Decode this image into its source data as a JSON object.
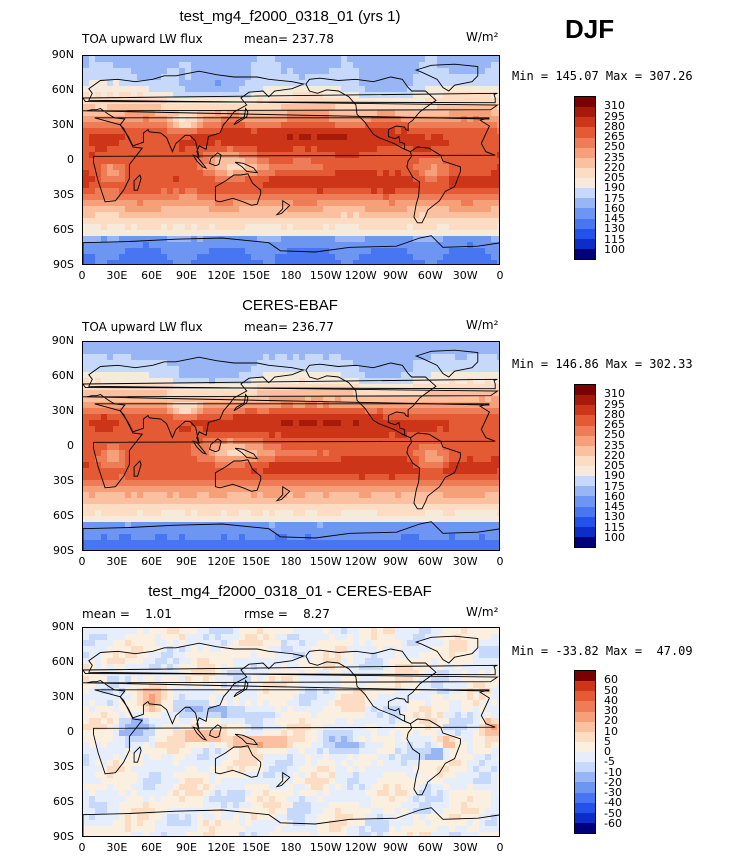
{
  "season": "DJF",
  "colors": {
    "abs": [
      "#00007a",
      "#0b2ec9",
      "#2251ec",
      "#4876f2",
      "#6d95f2",
      "#98b5f5",
      "#c6d9fb",
      "#f6eadb",
      "#fddcc4",
      "#fbc0a0",
      "#f6a079",
      "#ee7d57",
      "#e35a34",
      "#cc3518",
      "#a51a09",
      "#7d0000"
    ],
    "diff": [
      "#00007a",
      "#0b2ec9",
      "#2251ec",
      "#4876f2",
      "#6d95f2",
      "#98b5f5",
      "#c6d9fb",
      "#e7eefb",
      "#fbf0e0",
      "#fddcc4",
      "#fbc0a0",
      "#f6a079",
      "#ee7d57",
      "#e35a34",
      "#cc3518",
      "#7d0000"
    ]
  },
  "panels": [
    {
      "title": "test_mg4_f2000_0318_01 (yrs 1)",
      "hdr_left": "TOA upward LW flux",
      "hdr_mid": "mean= 237.78",
      "units": "W/m²",
      "minmax": "Min = 145.07 Max = 307.26",
      "colorbar_labels": [
        "310",
        "295",
        "280",
        "265",
        "250",
        "235",
        "220",
        "205",
        "190",
        "175",
        "160",
        "145",
        "130",
        "115",
        "100"
      ]
    },
    {
      "title": "CERES-EBAF",
      "hdr_left": "TOA upward LW flux",
      "hdr_mid": "mean= 236.77",
      "units": "W/m²",
      "minmax": "Min = 146.86 Max = 302.33",
      "colorbar_labels": [
        "310",
        "295",
        "280",
        "265",
        "250",
        "235",
        "220",
        "205",
        "190",
        "175",
        "160",
        "145",
        "130",
        "115",
        "100"
      ]
    },
    {
      "title": "test_mg4_f2000_0318_01 - CERES-EBAF",
      "hdr_left": "mean =    1.01",
      "hdr_mid": "rmse =    8.27",
      "units": "W/m²",
      "minmax": "Min = -33.82 Max =  47.09",
      "colorbar_labels": [
        "60",
        "50",
        "40",
        "30",
        "20",
        "10",
        "5",
        "0",
        "-5",
        "-10",
        "-20",
        "-30",
        "-40",
        "-50",
        "-60"
      ]
    }
  ],
  "lat_labels": [
    "90N",
    "60N",
    "30N",
    "0",
    "30S",
    "60S",
    "90S"
  ],
  "lon_labels": [
    "0",
    "30E",
    "60E",
    "90E",
    "120E",
    "150E",
    "180",
    "150W",
    "120W",
    "90W",
    "60W",
    "30W",
    "0"
  ],
  "chart_data": [
    {
      "type": "heatmap",
      "title": "test_mg4_f2000_0318_01 (yrs 1)",
      "variable": "TOA upward LW flux",
      "units": "W/m²",
      "mean": 237.78,
      "min": 145.07,
      "max": 307.26,
      "levels": [
        100,
        115,
        130,
        145,
        160,
        175,
        190,
        205,
        220,
        235,
        250,
        265,
        280,
        295,
        310
      ],
      "lon_range": [
        0,
        360
      ],
      "lat_range": [
        -90,
        90
      ]
    },
    {
      "type": "heatmap",
      "title": "CERES-EBAF",
      "variable": "TOA upward LW flux",
      "units": "W/m²",
      "mean": 236.77,
      "min": 146.86,
      "max": 302.33,
      "levels": [
        100,
        115,
        130,
        145,
        160,
        175,
        190,
        205,
        220,
        235,
        250,
        265,
        280,
        295,
        310
      ],
      "lon_range": [
        0,
        360
      ],
      "lat_range": [
        -90,
        90
      ]
    },
    {
      "type": "heatmap",
      "title": "test_mg4_f2000_0318_01 - CERES-EBAF",
      "units": "W/m²",
      "mean": 1.01,
      "rmse": 8.27,
      "min": -33.82,
      "max": 47.09,
      "levels": [
        -60,
        -50,
        -40,
        -30,
        -20,
        -10,
        -5,
        0,
        5,
        10,
        20,
        30,
        40,
        50,
        60
      ],
      "lon_range": [
        0,
        360
      ],
      "lat_range": [
        -90,
        90
      ]
    }
  ]
}
